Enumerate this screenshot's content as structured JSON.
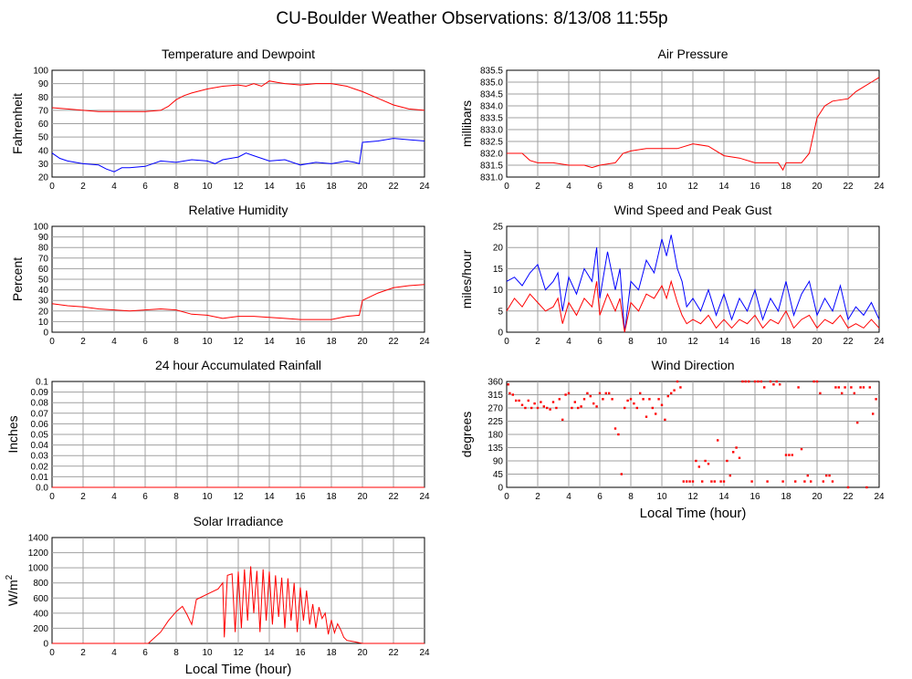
{
  "page_title": "CU-Boulder Weather Observations: 8/13/08 11:55p",
  "colors": {
    "red": "#ff0000",
    "blue": "#0000ff",
    "grid": "#a0a0a0"
  },
  "chart_data": [
    {
      "id": "temp",
      "type": "line",
      "title": "Temperature and Dewpoint",
      "ylabel": "Fahrenheit",
      "xlabel": "",
      "xlim": [
        0,
        24
      ],
      "ylim": [
        20,
        100
      ],
      "xticks": [
        "0",
        "2",
        "4",
        "6",
        "8",
        "10",
        "12",
        "14",
        "16",
        "18",
        "20",
        "22",
        "24"
      ],
      "yticks": [
        "20",
        "30",
        "40",
        "50",
        "60",
        "70",
        "80",
        "90",
        "100"
      ],
      "series": [
        {
          "color": "#ff0000",
          "x": [
            0,
            1,
            2,
            3,
            4,
            5,
            6,
            7,
            7.5,
            8,
            8.5,
            9,
            10,
            11,
            12,
            12.5,
            13,
            13.5,
            14,
            14.5,
            15,
            16,
            17,
            18,
            19,
            19.5,
            20,
            21,
            22,
            23,
            24
          ],
          "y": [
            72,
            71,
            70,
            69,
            69,
            69,
            69,
            70,
            73,
            78,
            81,
            83,
            86,
            88,
            89,
            88,
            90,
            88,
            92,
            91,
            90,
            89,
            90,
            90,
            88,
            86,
            84,
            79,
            74,
            71,
            70
          ]
        },
        {
          "color": "#0000ff",
          "x": [
            0,
            0.5,
            1,
            2,
            3,
            3.5,
            4,
            4.5,
            5,
            6,
            7,
            8,
            9,
            10,
            10.5,
            11,
            12,
            12.5,
            13,
            14,
            15,
            16,
            17,
            18,
            19,
            19.5,
            19.8,
            20,
            21,
            22,
            23,
            24
          ],
          "y": [
            38,
            34,
            32,
            30,
            29,
            26,
            24,
            27,
            27,
            28,
            32,
            31,
            33,
            32,
            30,
            33,
            35,
            38,
            36,
            32,
            33,
            29,
            31,
            30,
            32,
            31,
            30,
            46,
            47,
            49,
            48,
            47
          ]
        }
      ]
    },
    {
      "id": "rh",
      "type": "line",
      "title": "Relative Humidity",
      "ylabel": "Percent",
      "xlabel": "",
      "xlim": [
        0,
        24
      ],
      "ylim": [
        0,
        100
      ],
      "xticks": [
        "0",
        "2",
        "4",
        "6",
        "8",
        "10",
        "12",
        "14",
        "16",
        "18",
        "20",
        "22",
        "24"
      ],
      "yticks": [
        "0",
        "10",
        "20",
        "30",
        "40",
        "50",
        "60",
        "70",
        "80",
        "90",
        "100"
      ],
      "series": [
        {
          "color": "#ff0000",
          "x": [
            0,
            1,
            2,
            3,
            4,
            5,
            6,
            7,
            8,
            9,
            10,
            11,
            12,
            13,
            14,
            15,
            16,
            17,
            18,
            19,
            19.8,
            20,
            21,
            22,
            23,
            24
          ],
          "y": [
            27,
            25,
            24,
            22,
            21,
            20,
            21,
            22,
            21,
            17,
            16,
            13,
            15,
            15,
            14,
            13,
            12,
            12,
            12,
            15,
            16,
            30,
            37,
            42,
            44,
            45
          ]
        }
      ]
    },
    {
      "id": "rain",
      "type": "line",
      "title": "24 hour Accumulated Rainfall",
      "ylabel": "Inches",
      "xlabel": "",
      "xlim": [
        0,
        24
      ],
      "ylim": [
        0,
        0.1
      ],
      "xticks": [
        "0",
        "2",
        "4",
        "6",
        "8",
        "10",
        "12",
        "14",
        "16",
        "18",
        "20",
        "22",
        "24"
      ],
      "yticks": [
        "0.0",
        "0.01",
        "0.02",
        "0.03",
        "0.04",
        "0.05",
        "0.06",
        "0.07",
        "0.08",
        "0.09",
        "0.1"
      ],
      "series": [
        {
          "color": "#ff0000",
          "x": [
            0,
            24
          ],
          "y": [
            0,
            0
          ]
        }
      ]
    },
    {
      "id": "solar",
      "type": "line",
      "title": "Solar Irradiance",
      "ylabel": "W/m",
      "ylabel_sup": "2",
      "xlabel": "Local Time (hour)",
      "xlim": [
        0,
        24
      ],
      "ylim": [
        0,
        1400
      ],
      "xticks": [
        "0",
        "2",
        "4",
        "6",
        "8",
        "10",
        "12",
        "14",
        "16",
        "18",
        "20",
        "22",
        "24"
      ],
      "yticks": [
        "0",
        "200",
        "400",
        "600",
        "800",
        "1000",
        "1200",
        "1400"
      ],
      "series": [
        {
          "color": "#ff0000",
          "x": [
            0,
            6.2,
            7,
            7.5,
            8,
            8.4,
            8.7,
            9,
            9.3,
            10,
            10.7,
            11,
            11.1,
            11.3,
            11.6,
            11.8,
            12,
            12.2,
            12.4,
            12.6,
            12.8,
            13,
            13.2,
            13.4,
            13.6,
            13.8,
            14,
            14.2,
            14.4,
            14.6,
            14.8,
            15,
            15.2,
            15.4,
            15.6,
            15.8,
            16,
            16.2,
            16.4,
            16.6,
            16.8,
            17,
            17.2,
            17.4,
            17.6,
            17.8,
            18,
            18.2,
            18.4,
            18.6,
            18.8,
            19,
            19.5,
            20,
            24
          ],
          "y": [
            0,
            0,
            150,
            300,
            420,
            490,
            380,
            250,
            580,
            650,
            720,
            800,
            80,
            900,
            920,
            150,
            950,
            200,
            980,
            300,
            1020,
            400,
            960,
            150,
            980,
            300,
            950,
            250,
            900,
            350,
            870,
            200,
            860,
            300,
            800,
            150,
            740,
            300,
            700,
            250,
            520,
            200,
            480,
            330,
            400,
            120,
            310,
            140,
            260,
            180,
            80,
            40,
            20,
            0,
            0
          ]
        }
      ]
    },
    {
      "id": "pressure",
      "type": "line",
      "title": "Air Pressure",
      "ylabel": "millibars",
      "xlabel": "",
      "xlim": [
        0,
        24
      ],
      "ylim": [
        831.0,
        835.5
      ],
      "xticks": [
        "0",
        "2",
        "4",
        "6",
        "8",
        "10",
        "12",
        "14",
        "16",
        "18",
        "20",
        "22",
        "24"
      ],
      "yticks": [
        "831.0",
        "831.5",
        "832.0",
        "832.5",
        "833.0",
        "833.5",
        "834.0",
        "834.5",
        "835.0",
        "835.5"
      ],
      "series": [
        {
          "color": "#ff0000",
          "x": [
            0,
            1,
            1.5,
            2,
            3,
            4,
            5,
            5.5,
            6,
            7,
            7.5,
            8,
            9,
            10,
            11,
            12,
            13,
            13.5,
            14,
            15,
            16,
            17,
            17.5,
            17.8,
            18,
            19,
            19.5,
            20,
            20.5,
            21,
            22,
            22.5,
            23,
            23.5,
            24
          ],
          "y": [
            832.0,
            832.0,
            831.7,
            831.6,
            831.6,
            831.5,
            831.5,
            831.4,
            831.5,
            831.6,
            832.0,
            832.1,
            832.2,
            832.2,
            832.2,
            832.4,
            832.3,
            832.1,
            831.9,
            831.8,
            831.6,
            831.6,
            831.6,
            831.3,
            831.6,
            831.6,
            832.0,
            833.5,
            834.0,
            834.2,
            834.3,
            834.6,
            834.8,
            835.0,
            835.2
          ]
        }
      ]
    },
    {
      "id": "wind",
      "type": "line",
      "title": "Wind Speed and Peak Gust",
      "ylabel": "miles/hour",
      "xlabel": "",
      "xlim": [
        0,
        24
      ],
      "ylim": [
        0,
        25
      ],
      "xticks": [
        "0",
        "2",
        "4",
        "6",
        "8",
        "10",
        "12",
        "14",
        "16",
        "18",
        "20",
        "22",
        "24"
      ],
      "yticks": [
        "0",
        "5",
        "10",
        "15",
        "20",
        "25"
      ],
      "series": [
        {
          "color": "#0000ff",
          "x": [
            0,
            0.5,
            1,
            1.5,
            2,
            2.5,
            3,
            3.3,
            3.6,
            4,
            4.5,
            5,
            5.5,
            5.8,
            6,
            6.5,
            7,
            7.3,
            7.6,
            8,
            8.5,
            9,
            9.5,
            10,
            10.3,
            10.6,
            11,
            11.3,
            11.6,
            12,
            12.5,
            13,
            13.5,
            14,
            14.5,
            15,
            15.5,
            16,
            16.5,
            17,
            17.5,
            18,
            18.5,
            19,
            19.5,
            20,
            20.5,
            21,
            21.5,
            22,
            22.5,
            23,
            23.5,
            24
          ],
          "y": [
            12,
            13,
            11,
            14,
            16,
            10,
            12,
            14,
            5,
            13,
            9,
            15,
            12,
            20,
            8,
            19,
            10,
            15,
            0,
            12,
            10,
            17,
            14,
            22,
            18,
            23,
            15,
            12,
            6,
            8,
            5,
            10,
            4,
            9,
            3,
            8,
            5,
            10,
            3,
            8,
            5,
            12,
            4,
            9,
            12,
            4,
            8,
            5,
            11,
            3,
            6,
            4,
            7,
            3
          ]
        },
        {
          "color": "#ff0000",
          "x": [
            0,
            0.5,
            1,
            1.5,
            2,
            2.5,
            3,
            3.3,
            3.6,
            4,
            4.5,
            5,
            5.5,
            5.8,
            6,
            6.5,
            7,
            7.3,
            7.6,
            8,
            8.5,
            9,
            9.5,
            10,
            10.3,
            10.6,
            11,
            11.3,
            11.6,
            12,
            12.5,
            13,
            13.5,
            14,
            14.5,
            15,
            15.5,
            16,
            16.5,
            17,
            17.5,
            18,
            18.5,
            19,
            19.5,
            20,
            20.5,
            21,
            21.5,
            22,
            22.5,
            23,
            23.5,
            24
          ],
          "y": [
            5,
            8,
            6,
            9,
            7,
            5,
            6,
            8,
            2,
            7,
            4,
            8,
            6,
            12,
            4,
            9,
            5,
            8,
            0,
            7,
            5,
            9,
            8,
            11,
            8,
            12,
            7,
            4,
            2,
            3,
            2,
            4,
            1,
            3,
            1,
            3,
            2,
            4,
            1,
            3,
            2,
            5,
            1,
            3,
            4,
            1,
            3,
            2,
            4,
            1,
            2,
            1,
            3,
            1
          ]
        }
      ]
    },
    {
      "id": "winddir",
      "type": "scatter",
      "title": "Wind Direction",
      "ylabel": "degrees",
      "xlabel": "Local Time (hour)",
      "xlim": [
        0,
        24
      ],
      "ylim": [
        0,
        360
      ],
      "xticks": [
        "0",
        "2",
        "4",
        "6",
        "8",
        "10",
        "12",
        "14",
        "16",
        "18",
        "20",
        "22",
        "24"
      ],
      "yticks": [
        "0",
        "45",
        "90",
        "135",
        "180",
        "225",
        "270",
        "315",
        "360"
      ],
      "series": [
        {
          "color": "#ff0000",
          "x": [
            0.1,
            0.2,
            0.4,
            0.6,
            0.8,
            1,
            1.2,
            1.4,
            1.6,
            1.8,
            2,
            2.2,
            2.4,
            2.6,
            2.8,
            3,
            3.2,
            3.4,
            3.6,
            3.8,
            4,
            4.2,
            4.4,
            4.6,
            4.8,
            5,
            5.2,
            5.4,
            5.6,
            5.8,
            6,
            6.2,
            6.4,
            6.6,
            6.8,
            7,
            7.2,
            7.4,
            7.6,
            7.8,
            8,
            8.2,
            8.4,
            8.6,
            8.8,
            9,
            9.2,
            9.4,
            9.6,
            9.8,
            10,
            10.2,
            10.4,
            10.6,
            10.8,
            11,
            11.2,
            11.4,
            11.6,
            11.8,
            12,
            12.2,
            12.4,
            12.6,
            12.8,
            13,
            13.2,
            13.4,
            13.6,
            13.8,
            14,
            14.2,
            14.4,
            14.6,
            14.8,
            15,
            15.2,
            15.4,
            15.6,
            15.8,
            16,
            16.2,
            16.4,
            16.6,
            16.8,
            17,
            17.2,
            17.4,
            17.6,
            17.8,
            18,
            18.2,
            18.4,
            18.6,
            18.8,
            19,
            19.2,
            19.4,
            19.6,
            19.8,
            20,
            20.2,
            20.4,
            20.6,
            20.8,
            21,
            21.2,
            21.4,
            21.6,
            21.8,
            22,
            22.2,
            22.4,
            22.6,
            22.8,
            23,
            23.2,
            23.4,
            23.6,
            23.8
          ],
          "y": [
            350,
            320,
            315,
            295,
            295,
            280,
            270,
            295,
            270,
            285,
            270,
            290,
            275,
            270,
            265,
            290,
            270,
            300,
            230,
            315,
            320,
            270,
            290,
            270,
            275,
            300,
            320,
            310,
            285,
            275,
            320,
            300,
            320,
            320,
            300,
            200,
            180,
            45,
            270,
            295,
            300,
            285,
            270,
            320,
            300,
            240,
            300,
            270,
            250,
            300,
            280,
            230,
            310,
            320,
            330,
            360,
            340,
            20,
            20,
            20,
            20,
            90,
            70,
            20,
            90,
            80,
            20,
            20,
            160,
            20,
            20,
            90,
            40,
            120,
            135,
            100,
            360,
            360,
            360,
            20,
            360,
            360,
            360,
            340,
            20,
            360,
            350,
            360,
            350,
            20,
            110,
            110,
            110,
            20,
            340,
            130,
            20,
            40,
            20,
            360,
            360,
            320,
            20,
            40,
            40,
            20,
            340,
            340,
            320,
            340,
            0,
            340,
            320,
            220,
            340,
            340,
            0,
            340,
            250,
            300
          ]
        }
      ]
    }
  ]
}
